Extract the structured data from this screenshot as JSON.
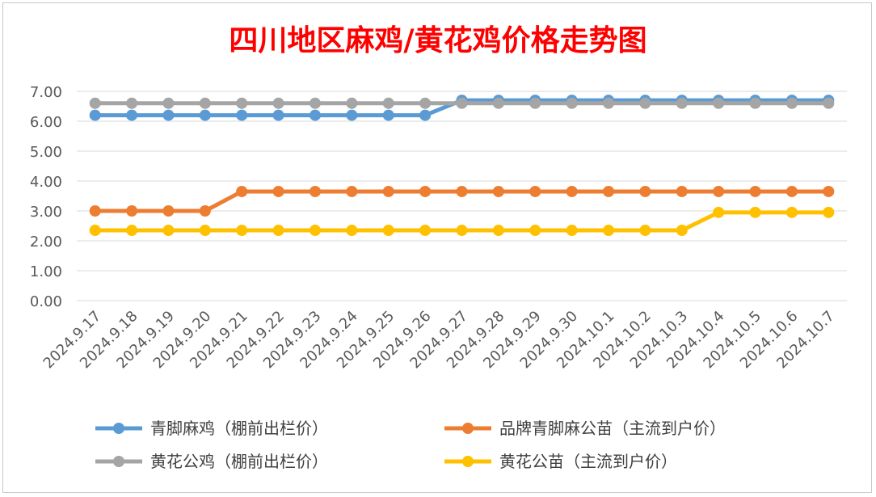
{
  "chart_data": {
    "type": "line",
    "title": "四川地区麻鸡/黄花鸡价格走势图",
    "categories": [
      "2024.9.17",
      "2024.9.18",
      "2024.9.19",
      "2024.9.20",
      "2024.9.21",
      "2024.9.22",
      "2024.9.23",
      "2024.9.24",
      "2024.9.25",
      "2024.9.26",
      "2024.9.27",
      "2024.9.28",
      "2024.9.29",
      "2024.9.30",
      "2024.10.1",
      "2024.10.2",
      "2024.10.3",
      "2024.10.4",
      "2024.10.5",
      "2024.10.6",
      "2024.10.7"
    ],
    "yticks": [
      "0.00",
      "1.00",
      "2.00",
      "3.00",
      "4.00",
      "5.00",
      "6.00",
      "7.00"
    ],
    "ylim": [
      0,
      7
    ],
    "grid": true,
    "legend_position": "bottom",
    "series": [
      {
        "name": "青脚麻鸡（棚前出栏价）",
        "color": "#5b9bd5",
        "values": [
          6.2,
          6.2,
          6.2,
          6.2,
          6.2,
          6.2,
          6.2,
          6.2,
          6.2,
          6.2,
          6.7,
          6.7,
          6.7,
          6.7,
          6.7,
          6.7,
          6.7,
          6.7,
          6.7,
          6.7,
          6.7
        ]
      },
      {
        "name": "品牌青脚麻公苗（主流到户价）",
        "color": "#ed7d31",
        "values": [
          3.0,
          3.0,
          3.0,
          3.0,
          3.65,
          3.65,
          3.65,
          3.65,
          3.65,
          3.65,
          3.65,
          3.65,
          3.65,
          3.65,
          3.65,
          3.65,
          3.65,
          3.65,
          3.65,
          3.65,
          3.65
        ]
      },
      {
        "name": "黄花公鸡（棚前出栏价）",
        "color": "#a5a5a5",
        "values": [
          6.6,
          6.6,
          6.6,
          6.6,
          6.6,
          6.6,
          6.6,
          6.6,
          6.6,
          6.6,
          6.6,
          6.6,
          6.6,
          6.6,
          6.6,
          6.6,
          6.6,
          6.6,
          6.6,
          6.6,
          6.6
        ]
      },
      {
        "name": "黄花公苗（主流到户价）",
        "color": "#ffc000",
        "values": [
          2.35,
          2.35,
          2.35,
          2.35,
          2.35,
          2.35,
          2.35,
          2.35,
          2.35,
          2.35,
          2.35,
          2.35,
          2.35,
          2.35,
          2.35,
          2.35,
          2.35,
          2.95,
          2.95,
          2.95,
          2.95
        ]
      }
    ]
  }
}
